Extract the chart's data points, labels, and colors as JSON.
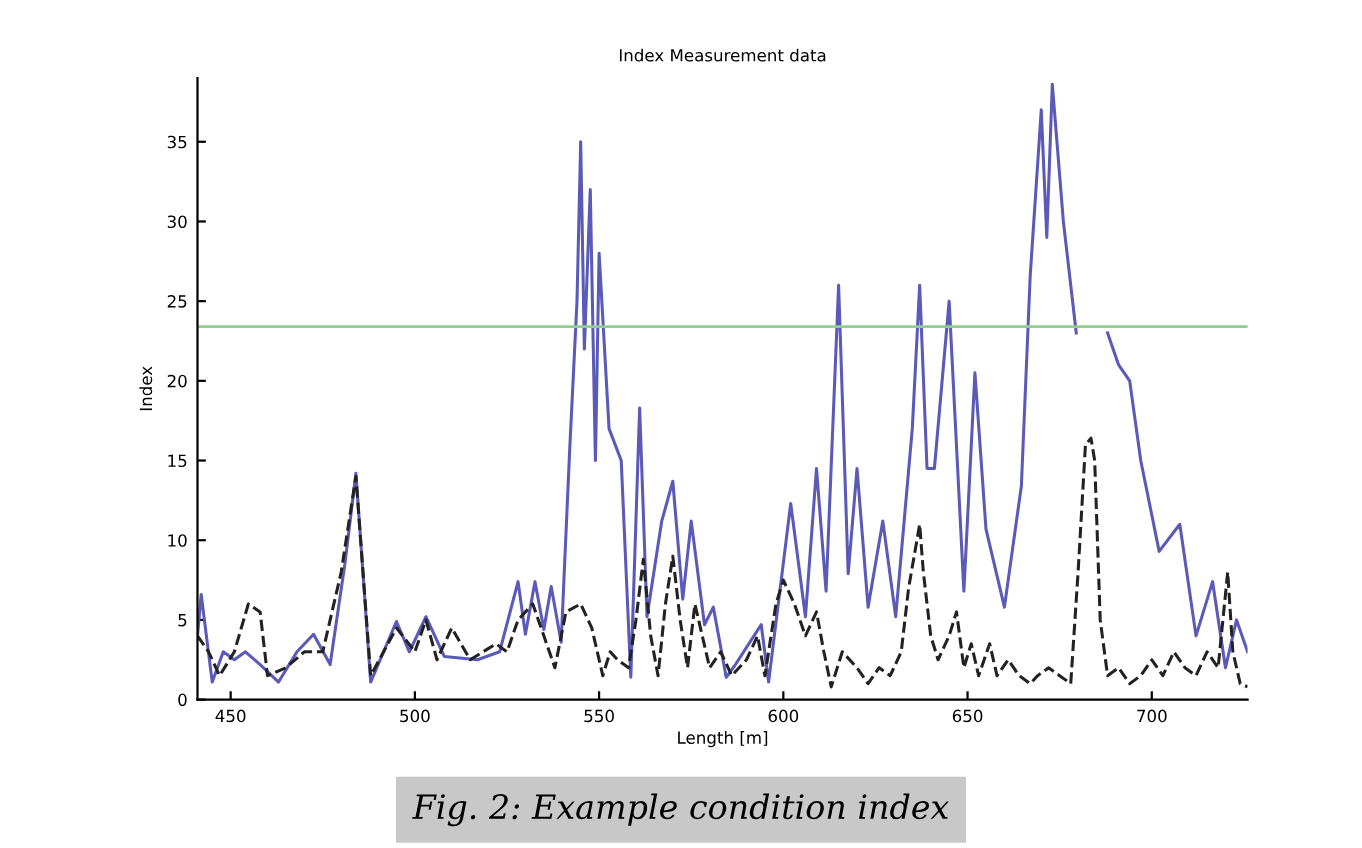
{
  "chart_data": {
    "type": "line",
    "title": "Index Measurement data",
    "xlabel": "Length [m]",
    "ylabel": "Index",
    "annotations": [
      "Fig. 2: Example condition index"
    ],
    "xlim": [
      441,
      726
    ],
    "ylim": [
      0,
      39
    ],
    "xticks": [
      450,
      500,
      550,
      600,
      650,
      700
    ],
    "yticks": [
      0,
      5,
      10,
      15,
      20,
      25,
      30,
      35
    ],
    "grid": false,
    "legend": false,
    "marker": "none",
    "ref_lines": [
      {
        "axis": "y",
        "value": 23.4,
        "color": "#8fcf8f",
        "line_style": "solid"
      }
    ],
    "series": [
      {
        "color": "#5a5ab8",
        "line_style": "solid",
        "x": [
          441,
          442,
          445,
          448,
          451,
          454,
          458,
          463,
          468,
          472.5,
          477,
          481,
          484,
          488,
          495,
          498.5,
          503,
          508,
          517,
          523,
          528,
          530,
          532.6,
          535,
          537,
          539.7,
          542,
          544,
          545,
          546,
          547.6,
          549,
          550,
          552.7,
          556,
          558.6,
          561,
          563,
          567,
          570,
          572.7,
          575,
          578.6,
          581,
          584.5,
          587,
          594,
          596,
          602,
          606,
          609,
          611.6,
          615,
          617.6,
          620,
          623,
          627,
          630.5,
          635,
          637,
          639,
          641,
          645,
          649,
          652,
          655,
          660,
          664.6,
          667,
          670,
          671.5,
          673,
          676,
          679.5,
          680,
          687,
          688,
          691,
          694,
          697,
          702,
          707.6,
          712,
          716.5,
          720,
          723,
          726
        ],
        "values": [
          4,
          6.6,
          1.1,
          3,
          2.5,
          3,
          2.2,
          1.1,
          3,
          4.1,
          2.2,
          8.5,
          14.2,
          1.1,
          4.9,
          3,
          5.2,
          2.7,
          2.5,
          3,
          7.4,
          4.1,
          7.4,
          4.4,
          7.1,
          3.6,
          15.6,
          25,
          35,
          22,
          32,
          15,
          28,
          17,
          15,
          1.4,
          18.3,
          5.2,
          11.2,
          13.7,
          6.3,
          11.2,
          4.7,
          5.8,
          1.4,
          2.2,
          4.7,
          1.1,
          12.3,
          5.2,
          14.5,
          6.8,
          26,
          7.9,
          14.5,
          5.8,
          11.2,
          5.2,
          17,
          26,
          14.5,
          14.5,
          25,
          6.8,
          20.5,
          10.7,
          5.8,
          13.4,
          26.6,
          37,
          29,
          38.6,
          30,
          23,
          null,
          null,
          23,
          21,
          20,
          15,
          9.3,
          11,
          4,
          7.4,
          2,
          5,
          3
        ]
      },
      {
        "color": "#222222",
        "line_style": "dashed",
        "x": [
          441,
          444,
          447,
          451,
          454.8,
          458,
          460,
          465,
          470,
          475,
          480,
          484,
          488,
          495,
          500,
          503,
          506,
          510,
          515,
          522,
          525,
          528,
          532,
          535,
          538,
          541,
          545,
          548,
          551,
          553,
          555,
          558,
          560,
          562,
          564,
          566,
          568,
          570,
          572,
          574,
          576,
          578,
          580,
          583,
          586,
          590,
          593,
          595,
          598,
          600,
          603,
          606,
          609,
          611,
          613,
          616,
          620,
          623,
          626,
          629,
          632,
          634,
          637,
          638,
          640,
          642,
          645,
          647,
          649,
          651,
          653,
          656,
          658,
          661,
          664,
          667,
          669,
          672,
          675,
          678,
          680,
          682,
          683.5,
          684.5,
          686,
          688,
          691,
          694,
          697,
          700,
          703,
          706,
          709,
          712,
          715,
          718,
          720.6,
          722,
          724,
          726
        ],
        "values": [
          4,
          3,
          1.5,
          3,
          6,
          5.5,
          1.5,
          2,
          3,
          3,
          8,
          14,
          1.5,
          4.5,
          3,
          5,
          2.5,
          4.5,
          2.5,
          3.5,
          3,
          5,
          6,
          4,
          2,
          5.5,
          6,
          4.5,
          1.5,
          3,
          2.5,
          2,
          5,
          8.8,
          4,
          1.5,
          6,
          9,
          5,
          2,
          6,
          4,
          2,
          3,
          1.5,
          2.5,
          4,
          1.5,
          6,
          7.5,
          6,
          4,
          5.5,
          3,
          0.8,
          3,
          2,
          1,
          2,
          1.5,
          3,
          7,
          11,
          8,
          4,
          2.5,
          4,
          5.5,
          2,
          3.5,
          1.5,
          3.5,
          1.5,
          2.5,
          1.5,
          1,
          1.5,
          2,
          1.5,
          1,
          8,
          16,
          16.4,
          15,
          5,
          1.5,
          2,
          1,
          1.5,
          2.5,
          1.5,
          3,
          2,
          1.5,
          3,
          2,
          8,
          3,
          1,
          0.8
        ]
      }
    ]
  }
}
